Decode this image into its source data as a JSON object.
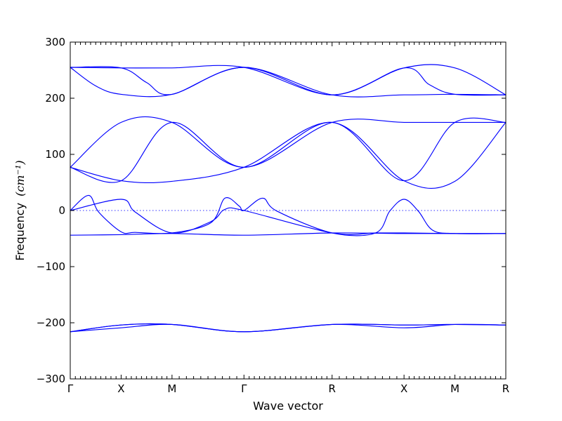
{
  "chart_data": {
    "type": "line",
    "title": "",
    "xlabel": "Wave vector",
    "ylabel": "Frequency",
    "ylabel_unit": "(cm⁻¹)",
    "ylim": [
      -300,
      300
    ],
    "yticks": [
      -300,
      -200,
      -100,
      0,
      100,
      200,
      300
    ],
    "ytick_labels": [
      "−300",
      "−200",
      "−100",
      "0",
      "100",
      "200",
      "300"
    ],
    "high_symmetry_points": [
      {
        "label": "Γ",
        "x": 0
      },
      {
        "label": "X",
        "x": 0.5
      },
      {
        "label": "M",
        "x": 1.0
      },
      {
        "label": "Γ",
        "x": 1.707
      },
      {
        "label": "R",
        "x": 2.573
      },
      {
        "label": "X",
        "x": 3.28
      },
      {
        "label": "M",
        "x": 3.78
      },
      {
        "label": "R",
        "x": 4.28
      }
    ],
    "xlim": [
      0,
      4.28
    ],
    "minor_ticks_per_segment": [
      10,
      10,
      10,
      17,
      10,
      10,
      10
    ],
    "zero_reference_line": true,
    "line_color": "#0000ff",
    "series": [
      {
        "x": [
          0,
          0.5,
          1.0,
          1.707,
          2.573,
          3.28,
          3.78,
          4.28
        ],
        "values": [
          255,
          254,
          254,
          255,
          206,
          254,
          254,
          206
        ]
      },
      {
        "x": [
          0,
          0.25,
          0.5,
          1.0,
          1.707,
          2.573,
          3.28,
          3.53,
          3.78,
          4.28
        ],
        "values": [
          255,
          222,
          207,
          207,
          255,
          206,
          254,
          224,
          207,
          206
        ]
      },
      {
        "x": [
          0,
          0.5,
          0.75,
          1.0,
          1.707,
          2.573,
          3.28,
          3.78,
          4.28
        ],
        "values": [
          255,
          254,
          228,
          207,
          255,
          206,
          206,
          207,
          206
        ]
      },
      {
        "x": [
          0,
          0.5,
          1.0,
          1.707,
          2.573,
          3.28,
          3.78,
          4.28
        ],
        "values": [
          77,
          157,
          157,
          77,
          157,
          157,
          157,
          157
        ]
      },
      {
        "x": [
          0,
          0.5,
          1.0,
          1.707,
          2.573,
          3.28,
          3.78,
          4.28
        ],
        "values": [
          77,
          53,
          157,
          77,
          157,
          53,
          157,
          157
        ]
      },
      {
        "x": [
          0,
          0.5,
          1.0,
          1.707,
          2.573,
          3.28,
          3.78,
          4.28
        ],
        "values": [
          77,
          53,
          52,
          77,
          157,
          53,
          52,
          157
        ]
      },
      {
        "x": [
          0,
          0.18,
          0.28,
          0.5,
          0.64,
          1.0,
          1.38,
          1.52,
          1.66,
          1.707,
          1.89,
          2.03,
          2.573,
          3.0,
          3.14,
          3.28,
          3.42,
          3.56,
          3.78,
          4.28
        ],
        "values": [
          0,
          27,
          -3,
          -38,
          -39,
          -40,
          -22,
          22,
          8,
          0,
          22,
          -1,
          -40,
          -40,
          -1,
          20,
          -1,
          -35,
          -41,
          -41
        ]
      },
      {
        "x": [
          0,
          0.5,
          0.64,
          1.0,
          1.38,
          1.52,
          1.707,
          2.573,
          3.0,
          3.28,
          3.78,
          4.28
        ],
        "values": [
          0,
          20,
          -3,
          -40,
          -20,
          2,
          0,
          -40,
          -40,
          -40,
          -41,
          -41
        ]
      },
      {
        "x": [
          0,
          0.5,
          1.0,
          1.707,
          2.573,
          3.28,
          3.78,
          4.28
        ],
        "values": [
          -44,
          -43,
          -41,
          -44,
          -40,
          -41,
          -41,
          -41
        ]
      },
      {
        "x": [
          0,
          0.5,
          1.0,
          1.707,
          2.573,
          3.28,
          3.78,
          4.28
        ],
        "values": [
          -216,
          -204,
          -203,
          -216,
          -203,
          -204,
          -203,
          -204
        ]
      },
      {
        "x": [
          0,
          0.5,
          1.0,
          1.707,
          2.573,
          3.28,
          3.78,
          4.28
        ],
        "values": [
          -216,
          -209,
          -203,
          -216,
          -203,
          -209,
          -203,
          -204
        ]
      },
      {
        "x": [
          0,
          0.5,
          1.0,
          1.707,
          2.573,
          3.28,
          3.78,
          4.28
        ],
        "values": [
          -216,
          -204,
          -203,
          -216,
          -203,
          -204,
          -203,
          -204
        ]
      }
    ]
  }
}
